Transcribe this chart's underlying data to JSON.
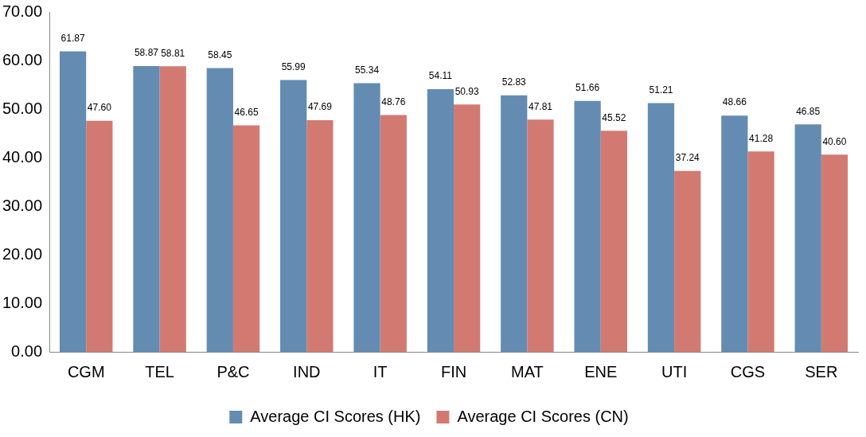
{
  "chart_data": {
    "type": "bar",
    "categories": [
      "CGM",
      "TEL",
      "P&C",
      "IND",
      "IT",
      "FIN",
      "MAT",
      "ENE",
      "UTI",
      "CGS",
      "SER"
    ],
    "series": [
      {
        "name": "Average CI Scores (HK)",
        "color": "#648cb2",
        "values": [
          61.87,
          58.87,
          58.45,
          55.99,
          55.34,
          54.11,
          52.83,
          51.66,
          51.21,
          48.66,
          46.85
        ]
      },
      {
        "name": "Average CI Scores (CN)",
        "color": "#d27a72",
        "values": [
          47.6,
          58.81,
          46.65,
          47.69,
          48.76,
          50.93,
          47.81,
          45.52,
          37.24,
          41.28,
          40.6
        ]
      }
    ],
    "value_labels": [
      [
        "61.87",
        "58.87",
        "58.45",
        "55.99",
        "55.34",
        "54.11",
        "52.83",
        "51.66",
        "51.21",
        "48.66",
        "46.85"
      ],
      [
        "47.60",
        "58.81",
        "46.65",
        "47.69",
        "48.76",
        "50.93",
        "47.81",
        "45.52",
        "37.24",
        "41.28",
        "40.60"
      ]
    ],
    "ylim": [
      0,
      70
    ],
    "yticks": [
      {
        "value": 0,
        "label": "0.00"
      },
      {
        "value": 10,
        "label": "10.00"
      },
      {
        "value": 20,
        "label": "20.00"
      },
      {
        "value": 30,
        "label": "30.00"
      },
      {
        "value": 40,
        "label": "40.00"
      },
      {
        "value": 50,
        "label": "50.00"
      },
      {
        "value": 60,
        "label": "60.00"
      },
      {
        "value": 70,
        "label": "70.00"
      }
    ],
    "grid": false,
    "legend": "bottom"
  }
}
